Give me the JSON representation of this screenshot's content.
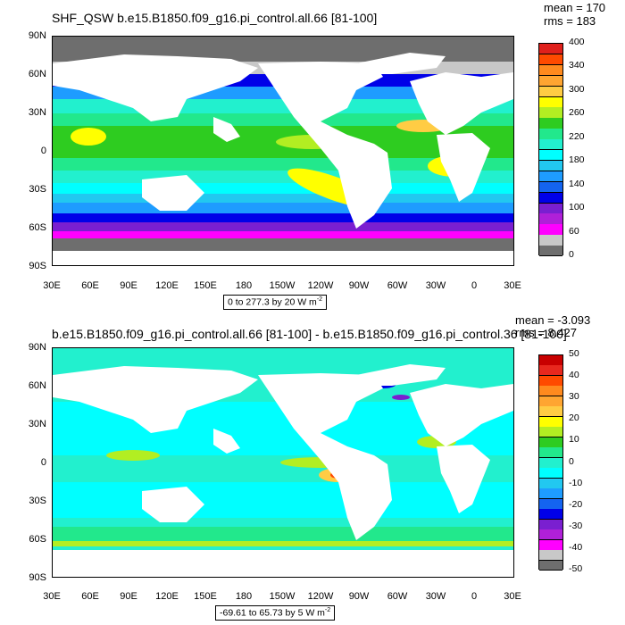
{
  "panel1": {
    "title": "SHF_QSW b.e15.B1850.f09_g16.pi_control.all.66 [81-100]",
    "mean_text": "mean = 170",
    "rms_text": "rms = 183",
    "range_text": "0 to 277.3 by 20",
    "range_unit": "W m",
    "range_unit_exp": "-2",
    "colorbar_labels": [
      "400",
      "340",
      "300",
      "260",
      "220",
      "180",
      "140",
      "100",
      "60",
      "0"
    ],
    "colorbar_colors": [
      "#e0201c",
      "#ff4a00",
      "#ff8a1e",
      "#ffa531",
      "#ffcc44",
      "#ffff00",
      "#b2ee22",
      "#2ecc20",
      "#22e88c",
      "#22f0ce",
      "#00ffff",
      "#22c8f0",
      "#1e9cff",
      "#1464f0",
      "#0000e8",
      "#7a1fd0",
      "#b020d8",
      "#ff00ff",
      "#c8c8c8",
      "#6e6e6e"
    ]
  },
  "panel2": {
    "title": "b.e15.B1850.f09_g16.pi_control.all.66 [81-100] - b.e15.B1850.f09_g16.pi_control.36 [81-100]",
    "mean_text": "mean = -3.093",
    "rms_text": "rms = 8.427",
    "range_text": "-69.61 to 65.73 by 5",
    "range_unit": "W m",
    "range_unit_exp": "-2",
    "colorbar_labels": [
      "50",
      "40",
      "30",
      "20",
      "10",
      "0",
      "-10",
      "-20",
      "-30",
      "-40",
      "-50"
    ],
    "colorbar_colors": [
      "#c80000",
      "#e8281e",
      "#ff4a00",
      "#ff8a1e",
      "#ffa531",
      "#ffcc44",
      "#ffff00",
      "#b2ee22",
      "#2ecc20",
      "#22e88c",
      "#22f0ce",
      "#00ffff",
      "#22c8f0",
      "#1e9cff",
      "#1464f0",
      "#0000e8",
      "#7a1fd0",
      "#b020d8",
      "#ff00ff",
      "#c8c8c8",
      "#6e6e6e"
    ]
  },
  "axes": {
    "lat_labels": [
      "90N",
      "60N",
      "30N",
      "0",
      "30S",
      "60S",
      "90S"
    ],
    "lon_labels": [
      "30E",
      "60E",
      "90E",
      "120E",
      "150E",
      "180",
      "150W",
      "120W",
      "90W",
      "60W",
      "30W",
      "0",
      "30E"
    ]
  }
}
